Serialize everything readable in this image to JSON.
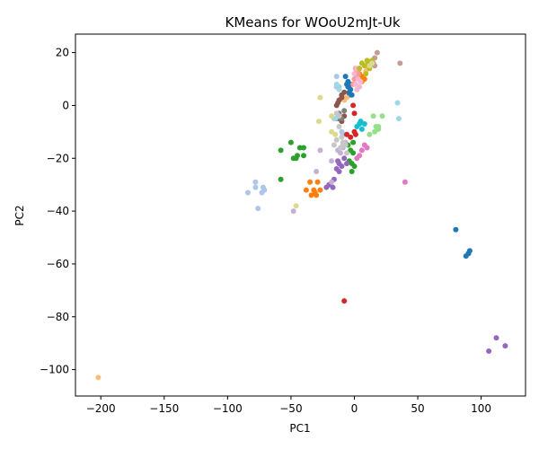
{
  "chart_data": {
    "type": "scatter",
    "title": "KMeans for WOoU2mJt-Uk",
    "xlabel": "PC1",
    "ylabel": "PC2",
    "xlim": [
      -220,
      135
    ],
    "ylim": [
      -110,
      27
    ],
    "xticks": [
      -200,
      -150,
      -100,
      -50,
      0,
      50,
      100
    ],
    "yticks": [
      20,
      0,
      -20,
      -40,
      -60,
      -80,
      -100
    ],
    "xtick_labels": [
      "−200",
      "−150",
      "−100",
      "−50",
      "0",
      "50",
      "100"
    ],
    "ytick_labels": [
      "20",
      "0",
      "−20",
      "−40",
      "−60",
      "−80",
      "−100"
    ],
    "grid": false,
    "legend": "none",
    "series": [
      {
        "color": "#1f77b4",
        "points": [
          [
            80,
            -47
          ],
          [
            88,
            -57
          ],
          [
            90,
            -56
          ],
          [
            91,
            -55
          ],
          [
            90,
            -56
          ],
          [
            -7,
            11
          ],
          [
            -6,
            8
          ],
          [
            -5,
            7
          ],
          [
            -4,
            5
          ],
          [
            -3,
            6
          ],
          [
            -2,
            4
          ],
          [
            -5,
            9
          ],
          [
            -3,
            8
          ],
          [
            -4,
            4
          ]
        ]
      },
      {
        "color": "#aec7e8",
        "points": [
          [
            -84,
            -33
          ],
          [
            -78,
            -31
          ],
          [
            -78,
            -29
          ],
          [
            -72,
            -31
          ],
          [
            -73,
            -33
          ],
          [
            -71,
            -32
          ],
          [
            -76,
            -39
          ],
          [
            -14,
            7
          ],
          [
            -12,
            7
          ],
          [
            -14,
            11
          ],
          [
            -10,
            -10
          ],
          [
            -9,
            -11
          ]
        ]
      },
      {
        "color": "#ff7f0e",
        "points": [
          [
            -38,
            -32
          ],
          [
            -35,
            -29
          ],
          [
            -32,
            -32
          ],
          [
            -30,
            -34
          ],
          [
            -34,
            -34
          ],
          [
            -31,
            -33
          ],
          [
            -27,
            -32
          ],
          [
            -29,
            -29
          ],
          [
            6,
            9
          ],
          [
            8,
            10
          ],
          [
            6,
            11
          ],
          [
            4,
            12
          ]
        ]
      },
      {
        "color": "#ffbb78",
        "points": [
          [
            -202,
            -103
          ],
          [
            -10,
            3
          ],
          [
            -8,
            2
          ],
          [
            -6,
            3
          ],
          [
            9,
            13
          ],
          [
            11,
            14
          ]
        ]
      },
      {
        "color": "#2ca02c",
        "points": [
          [
            -58,
            -17
          ],
          [
            -58,
            -28
          ],
          [
            -50,
            -14
          ],
          [
            -48,
            -20
          ],
          [
            -45,
            -19
          ],
          [
            -46,
            -20
          ],
          [
            -43,
            -16
          ],
          [
            -40,
            -16
          ],
          [
            -40,
            -19
          ],
          [
            -4,
            -21
          ],
          [
            -3,
            -17
          ],
          [
            -2,
            -22
          ],
          [
            0,
            -23
          ],
          [
            -1,
            -18
          ],
          [
            -2,
            -25
          ],
          [
            -5,
            -15
          ],
          [
            -1,
            -14
          ]
        ]
      },
      {
        "color": "#98df8a",
        "points": [
          [
            15,
            -4
          ],
          [
            22,
            -4
          ],
          [
            17,
            -8
          ],
          [
            19,
            -9
          ],
          [
            16,
            -10
          ],
          [
            19,
            -8
          ],
          [
            12,
            -11
          ]
        ]
      },
      {
        "color": "#d62728",
        "points": [
          [
            -8,
            -74
          ],
          [
            -6,
            -11
          ],
          [
            -3,
            -12
          ],
          [
            0,
            -10
          ],
          [
            1,
            -11
          ],
          [
            0,
            -3
          ],
          [
            -1,
            0
          ]
        ]
      },
      {
        "color": "#ff9896",
        "points": [
          [
            -1,
            8
          ],
          [
            0,
            10
          ],
          [
            2,
            11
          ],
          [
            1,
            14
          ],
          [
            3,
            12
          ],
          [
            4,
            14
          ],
          [
            2,
            13
          ]
        ]
      },
      {
        "color": "#9467bd",
        "points": [
          [
            106,
            -93
          ],
          [
            112,
            -88
          ],
          [
            119,
            -91
          ],
          [
            -22,
            -31
          ],
          [
            -20,
            -30
          ],
          [
            -17,
            -31
          ],
          [
            -16,
            -28
          ],
          [
            -14,
            -24
          ],
          [
            -12,
            -25
          ],
          [
            -10,
            -23
          ],
          [
            -8,
            -20
          ],
          [
            -6,
            -22
          ],
          [
            -12,
            -22
          ],
          [
            -13,
            -21
          ]
        ]
      },
      {
        "color": "#c5b0d5",
        "points": [
          [
            -48,
            -40
          ],
          [
            -30,
            -25
          ],
          [
            -27,
            -17
          ],
          [
            -18,
            -21
          ],
          [
            -18,
            -29
          ],
          [
            -13,
            -17
          ],
          [
            -11,
            -18
          ],
          [
            -9,
            -16
          ],
          [
            -7,
            -14
          ]
        ]
      },
      {
        "color": "#8c564b",
        "points": [
          [
            -10,
            4
          ],
          [
            -8,
            5
          ],
          [
            -12,
            2
          ],
          [
            -14,
            0
          ],
          [
            -13,
            1
          ],
          [
            -10,
            3
          ],
          [
            -12,
            -5
          ],
          [
            -10,
            -6
          ],
          [
            -8,
            -4
          ]
        ]
      },
      {
        "color": "#c49c94",
        "points": [
          [
            15,
            16
          ],
          [
            16,
            18
          ],
          [
            18,
            20
          ],
          [
            16,
            15
          ],
          [
            36,
            16
          ],
          [
            13,
            16
          ]
        ]
      },
      {
        "color": "#e377c2",
        "points": [
          [
            40,
            -29
          ],
          [
            8,
            -15
          ],
          [
            6,
            -17
          ],
          [
            4,
            -19
          ],
          [
            2,
            -20
          ],
          [
            10,
            -16
          ]
        ]
      },
      {
        "color": "#f7b6d2",
        "points": [
          [
            0,
            12
          ],
          [
            2,
            14
          ],
          [
            3,
            10
          ],
          [
            1,
            8
          ],
          [
            4,
            7
          ],
          [
            2,
            6
          ],
          [
            5,
            9
          ]
        ]
      },
      {
        "color": "#7f7f7f",
        "points": [
          [
            -12,
            -3
          ],
          [
            -10,
            -5
          ],
          [
            -8,
            -2
          ],
          [
            -14,
            -5
          ]
        ]
      },
      {
        "color": "#c7c7c7",
        "points": [
          [
            -16,
            -5
          ],
          [
            -14,
            -3
          ],
          [
            -12,
            -8
          ],
          [
            -10,
            -12
          ],
          [
            -16,
            -15
          ],
          [
            -14,
            -13
          ],
          [
            -9,
            -14
          ],
          [
            -11,
            -16
          ],
          [
            -7,
            -15
          ],
          [
            -12,
            -4
          ],
          [
            -6,
            -18
          ],
          [
            -9,
            -15
          ]
        ]
      },
      {
        "color": "#bcbd22",
        "points": [
          [
            4,
            14
          ],
          [
            6,
            16
          ],
          [
            8,
            15
          ],
          [
            10,
            17
          ],
          [
            12,
            14
          ],
          [
            14,
            17
          ],
          [
            11,
            16
          ],
          [
            9,
            12
          ]
        ]
      },
      {
        "color": "#dbdb8d",
        "points": [
          [
            -27,
            3
          ],
          [
            -28,
            -6
          ],
          [
            -18,
            -4
          ],
          [
            -18,
            -10
          ],
          [
            -15,
            -11
          ],
          [
            -46,
            -38
          ],
          [
            12,
            15
          ],
          [
            14,
            16
          ]
        ]
      },
      {
        "color": "#17becf",
        "points": [
          [
            4,
            -7
          ],
          [
            6,
            -9
          ],
          [
            8,
            -7
          ],
          [
            2,
            -8
          ],
          [
            5,
            -6
          ]
        ]
      },
      {
        "color": "#9edae5",
        "points": [
          [
            34,
            1
          ],
          [
            35,
            -5
          ],
          [
            -14,
            8
          ],
          [
            -12,
            6
          ],
          [
            -15,
            -5
          ]
        ]
      }
    ]
  }
}
